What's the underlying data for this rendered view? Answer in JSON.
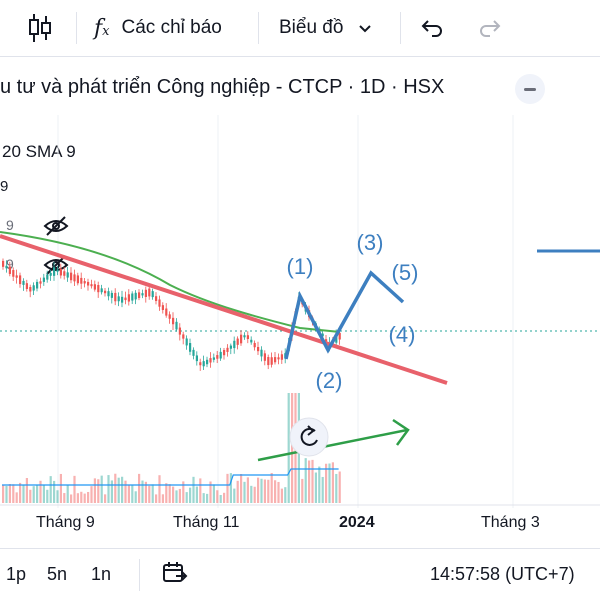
{
  "toolbar": {
    "candles_icon": "candlestick-icon",
    "indicators_label": "Các chỉ báo",
    "chart_menu_label": "Biểu đồ",
    "undo_icon": "undo-icon",
    "redo_icon": "redo-icon"
  },
  "symbol": {
    "title": "u tư và phát triển Công nghiệp - CTCP · 1D · HSX"
  },
  "indicators": {
    "ma_label": "20 SMA 9",
    "vol_label": "9",
    "row1_value": "9",
    "row2_value": "9"
  },
  "annotations": {
    "wave1": "(1)",
    "wave2": "(2)",
    "wave3": "(3)",
    "wave4": "(4)",
    "wave5": "(5)"
  },
  "time_axis": {
    "labels": [
      "Tháng 9",
      "Tháng 11",
      "2024",
      "Tháng 3"
    ]
  },
  "bottom_bar": {
    "range_1": "1p",
    "range_2": "5n",
    "range_3": "1n",
    "clock": "14:57:58 (UTC+7)"
  },
  "colors": {
    "up": "#26a69a",
    "down": "#ef5350",
    "trendline": "#e8616b",
    "sma": "#4caf50",
    "wave": "#3d7fc0",
    "arrow": "#2e9e48"
  }
}
